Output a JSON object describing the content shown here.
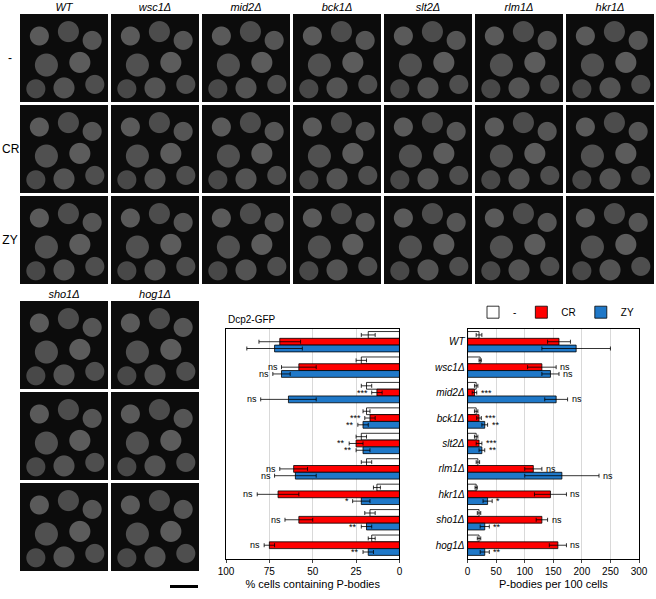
{
  "image_panels": {
    "row_labels": [
      "-",
      "CR",
      "ZY"
    ],
    "top_strains": [
      "WT",
      "wsc1Δ",
      "mid2Δ",
      "bck1Δ",
      "slt2Δ",
      "rlm1Δ",
      "hkr1Δ"
    ],
    "bottom_strains": [
      "sho1Δ",
      "hog1Δ"
    ]
  },
  "chart_data": {
    "type": "bar",
    "orientation": "horizontal",
    "title": "Dcp2-GFP",
    "grid": true,
    "legend": "top right",
    "categories": [
      "WT",
      "wsc1Δ",
      "mid2Δ",
      "bck1Δ",
      "slt2Δ",
      "rlm1Δ",
      "hkr1Δ",
      "sho1Δ",
      "hog1Δ"
    ],
    "panels": [
      {
        "xlabel": "% cells containing P-bodies",
        "xlim": [
          100,
          0
        ],
        "xticks": [
          100,
          75,
          50,
          25,
          0
        ],
        "series": [
          {
            "name": "-",
            "color": "#ffffff",
            "values": [
              18,
              22,
              19,
              19,
              22,
              19,
              13,
              17,
              16
            ],
            "error": [
              4,
              3,
              3,
              2,
              3,
              3,
              2,
              3,
              2
            ]
          },
          {
            "name": "CR",
            "color": "#ff0000",
            "values": [
              69,
              58,
              13,
              17,
              25,
              61,
              70,
              58,
              75
            ],
            "error": [
              12,
              10,
              3,
              3,
              4,
              8,
              12,
              8,
              3
            ],
            "significance": [
              null,
              "ns",
              "***",
              "***",
              "**",
              "ns",
              "ns",
              "ns",
              "ns"
            ]
          },
          {
            "name": "ZY",
            "color": "#1f78c8",
            "values": [
              72,
              68,
              64,
              21,
              21,
              60,
              22,
              19,
              18
            ],
            "error": [
              16,
              5,
              16,
              3,
              4,
              12,
              5,
              3,
              3
            ],
            "significance": [
              null,
              "ns",
              "ns",
              "**",
              "**",
              "ns",
              "*",
              "**",
              "**"
            ]
          }
        ]
      },
      {
        "xlabel": "P-bodies per 100 cells",
        "xlim": [
          0,
          300
        ],
        "xticks": [
          0,
          50,
          100,
          150,
          200,
          250,
          300
        ],
        "series": [
          {
            "name": "-",
            "color": "#ffffff",
            "values": [
              20,
              22,
              15,
              15,
              15,
              18,
              15,
              20,
              20
            ],
            "error": [
              5,
              2,
              3,
              3,
              3,
              3,
              2,
              3,
              3
            ]
          },
          {
            "name": "CR",
            "color": "#ff0000",
            "values": [
              160,
              130,
              12,
              20,
              20,
              115,
              145,
              130,
              158
            ],
            "error": [
              20,
              25,
              4,
              4,
              5,
              15,
              28,
              10,
              15
            ],
            "significance": [
              null,
              "ns",
              "***",
              "***",
              "***",
              "ns",
              "ns",
              "ns",
              "ns"
            ]
          },
          {
            "name": "ZY",
            "color": "#1f78c8",
            "values": [
              190,
              145,
              155,
              30,
              25,
              165,
              35,
              30,
              30
            ],
            "error": [
              60,
              15,
              20,
              5,
              5,
              65,
              8,
              8,
              8
            ],
            "significance": [
              null,
              "ns",
              "ns",
              "**",
              "**",
              "ns",
              "*",
              "**",
              "**"
            ]
          }
        ]
      }
    ]
  }
}
